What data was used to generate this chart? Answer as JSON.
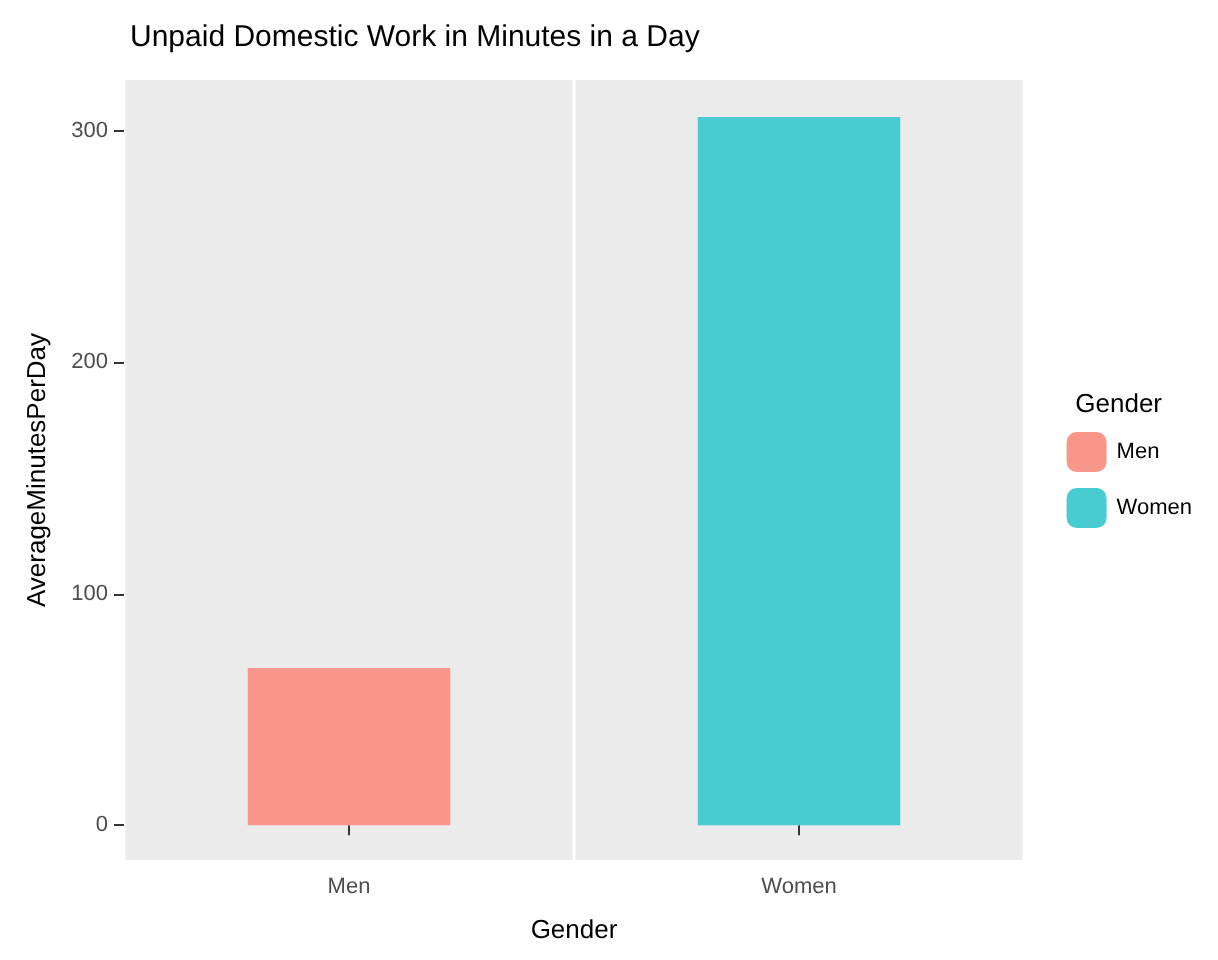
{
  "chart_data": {
    "type": "bar",
    "title": "Unpaid Domestic Work in Minutes in a Day",
    "xlabel": "Gender",
    "ylabel": "AverageMinutesPerDay",
    "legend_title": "Gender",
    "categories": [
      "Men",
      "Women"
    ],
    "series": [
      {
        "name": "Men",
        "color": "#f8968c",
        "values": [
          68,
          null
        ]
      },
      {
        "name": "Women",
        "color": "#48ccd2",
        "values": [
          null,
          306
        ]
      }
    ],
    "ylim": [
      -15,
      322
    ],
    "yticks": [
      0,
      100,
      200,
      300
    ],
    "grid": true,
    "legend": "right"
  }
}
